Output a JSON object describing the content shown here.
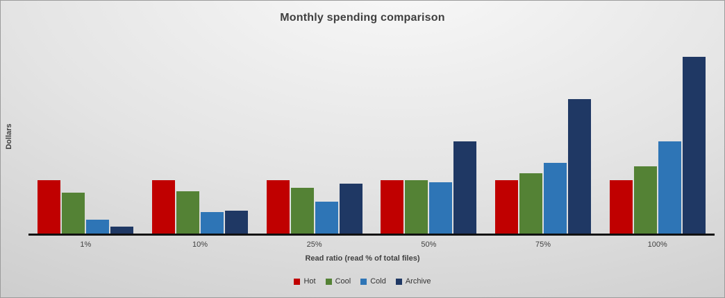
{
  "chart_data": {
    "type": "bar",
    "title": "Monthly spending comparison",
    "xlabel": "Read ratio (read % of total files)",
    "ylabel": "Dollars",
    "categories": [
      "1%",
      "10%",
      "25%",
      "50%",
      "75%",
      "100%"
    ],
    "series": [
      {
        "name": "Hot",
        "color": "#C00000",
        "values": [
          30,
          30,
          30,
          30,
          30,
          30
        ]
      },
      {
        "name": "Cool",
        "color": "#548235",
        "values": [
          23,
          24,
          26,
          30,
          34,
          38
        ]
      },
      {
        "name": "Cold",
        "color": "#2E75B6",
        "values": [
          8,
          12,
          18,
          29,
          40,
          52
        ]
      },
      {
        "name": "Archive",
        "color": "#1F3864",
        "values": [
          4,
          13,
          28,
          52,
          76,
          100
        ]
      }
    ],
    "ylim": [
      0,
      110
    ],
    "grid": false,
    "legend_position": "bottom"
  }
}
